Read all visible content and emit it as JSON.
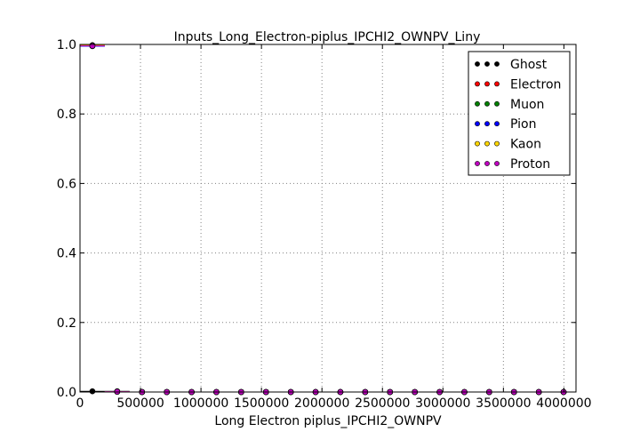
{
  "chart_data": {
    "type": "scatter",
    "title": "Inputs_Long_Electron-piplus_IPCHI2_OWNPV_Liny",
    "xlabel": "Long Electron piplus_IPCHI2_OWNPV",
    "ylabel": "",
    "xlim": [
      0,
      4100000
    ],
    "ylim": [
      0,
      1.0
    ],
    "x_ticks": [
      0,
      500000,
      1000000,
      1500000,
      2000000,
      2500000,
      3000000,
      3500000,
      4000000
    ],
    "x_tick_labels": [
      "0",
      "500000",
      "1000000",
      "1500000",
      "2000000",
      "2500000",
      "3000000",
      "3500000",
      "4000000"
    ],
    "y_ticks": [
      0.0,
      0.2,
      0.4,
      0.6,
      0.8,
      1.0
    ],
    "y_tick_labels": [
      "0.0",
      "0.2",
      "0.4",
      "0.6",
      "0.8",
      "1.0"
    ],
    "grid": true,
    "legend_position": "top-right",
    "x": [
      102500,
      307500,
      512500,
      717500,
      922500,
      1127500,
      1332500,
      1537500,
      1742500,
      1947500,
      2152500,
      2357500,
      2562500,
      2767500,
      2972500,
      3177500,
      3382500,
      3587500,
      3792500,
      3997500
    ],
    "x_half_width": 102500,
    "series": [
      {
        "name": "Ghost",
        "color": "#000000",
        "values": [
          0.002,
          0.002,
          0.0,
          0.0,
          0.0,
          0.0,
          0.0,
          0.0,
          0.0,
          0.0,
          0.0,
          0.0,
          0.0,
          0.0,
          0.0,
          0.0,
          0.0,
          0.0,
          0.0,
          0.0
        ]
      },
      {
        "name": "Electron",
        "color": "#ff0000",
        "values": [
          0.998,
          0.001,
          0.0,
          0.0,
          0.0,
          0.0,
          0.0,
          0.0,
          0.0,
          0.0,
          0.0,
          0.0,
          0.0,
          0.0,
          0.0,
          0.0,
          0.0,
          0.0,
          0.0,
          0.0
        ]
      },
      {
        "name": "Muon",
        "color": "#008000",
        "values": [
          0.996,
          0.001,
          0.0,
          0.0,
          0.0,
          0.0,
          0.0,
          0.0,
          0.0,
          0.0,
          0.0,
          0.0,
          0.0,
          0.0,
          0.0,
          0.0,
          0.0,
          0.0,
          0.0,
          0.0
        ]
      },
      {
        "name": "Pion",
        "color": "#0000ff",
        "values": [
          0.995,
          0.001,
          0.0,
          0.0,
          0.0,
          0.0,
          0.0,
          0.0,
          0.0,
          0.0,
          0.0,
          0.0,
          0.0,
          0.0,
          0.0,
          0.0,
          0.0,
          0.0,
          0.0,
          0.0
        ]
      },
      {
        "name": "Kaon",
        "color": "#ffd700",
        "values": [
          0.997,
          0.001,
          0.0,
          0.0,
          0.0,
          0.0,
          0.0,
          0.0,
          0.0,
          0.0,
          0.0,
          0.0,
          0.0,
          0.0,
          0.0,
          0.0,
          0.0,
          0.0,
          0.0,
          0.0
        ]
      },
      {
        "name": "Proton",
        "color": "#bf00bf",
        "values": [
          0.996,
          0.001,
          0.0,
          0.0,
          0.0,
          0.0,
          0.0,
          0.0,
          0.0,
          0.0,
          0.0,
          0.0,
          0.0,
          0.0,
          0.0,
          0.0,
          0.0,
          0.0,
          0.0,
          0.0
        ]
      }
    ]
  }
}
